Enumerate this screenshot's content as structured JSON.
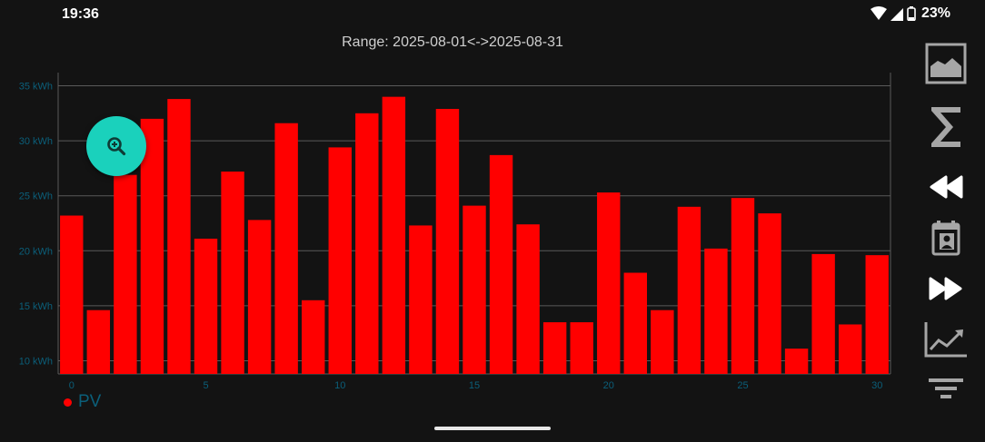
{
  "status_bar": {
    "time": "19:36",
    "battery": "23%"
  },
  "header": {
    "range_text": "Range: 2025-08-01<->2025-08-31"
  },
  "legend": {
    "label": "PV",
    "color": "#ff0000"
  },
  "toolbar": {
    "icons": [
      "image-icon",
      "sigma-icon",
      "rewind-icon",
      "calendar-contact-icon",
      "fast-forward-icon",
      "trend-chart-icon",
      "filter-icon"
    ]
  },
  "fab": {
    "icon": "zoom-in-icon",
    "color": "#1ad1bc"
  },
  "colors": {
    "bar": "#ff0000",
    "axis_text": "#0b5f7a",
    "background": "#131313",
    "grid": "#5a5a5a"
  },
  "chart_data": {
    "type": "bar",
    "title": "",
    "xlabel": "",
    "ylabel": "",
    "x": [
      0,
      1,
      2,
      3,
      4,
      5,
      6,
      7,
      8,
      9,
      10,
      11,
      12,
      13,
      14,
      15,
      16,
      17,
      18,
      19,
      20,
      21,
      22,
      23,
      24,
      25,
      26,
      27,
      28,
      29,
      30
    ],
    "x_ticks": [
      "0",
      "5",
      "10",
      "15",
      "20",
      "25",
      "30"
    ],
    "y_ticks": [
      "10 kWh",
      "15 kWh",
      "20 kWh",
      "25 kWh",
      "30 kWh",
      "35 kWh"
    ],
    "ylim": [
      8.8,
      36.2
    ],
    "grid": true,
    "legend_position": "bottom-left",
    "series": [
      {
        "name": "PV",
        "color": "#ff0000",
        "values": [
          23.2,
          14.6,
          26.9,
          32.0,
          33.8,
          21.1,
          27.2,
          22.8,
          31.6,
          15.5,
          29.4,
          32.5,
          34.0,
          22.3,
          32.9,
          24.1,
          28.7,
          22.4,
          13.5,
          13.5,
          25.3,
          18.0,
          14.6,
          24.0,
          20.2,
          24.8,
          23.4,
          11.1,
          19.7,
          13.3,
          19.6
        ]
      }
    ]
  }
}
